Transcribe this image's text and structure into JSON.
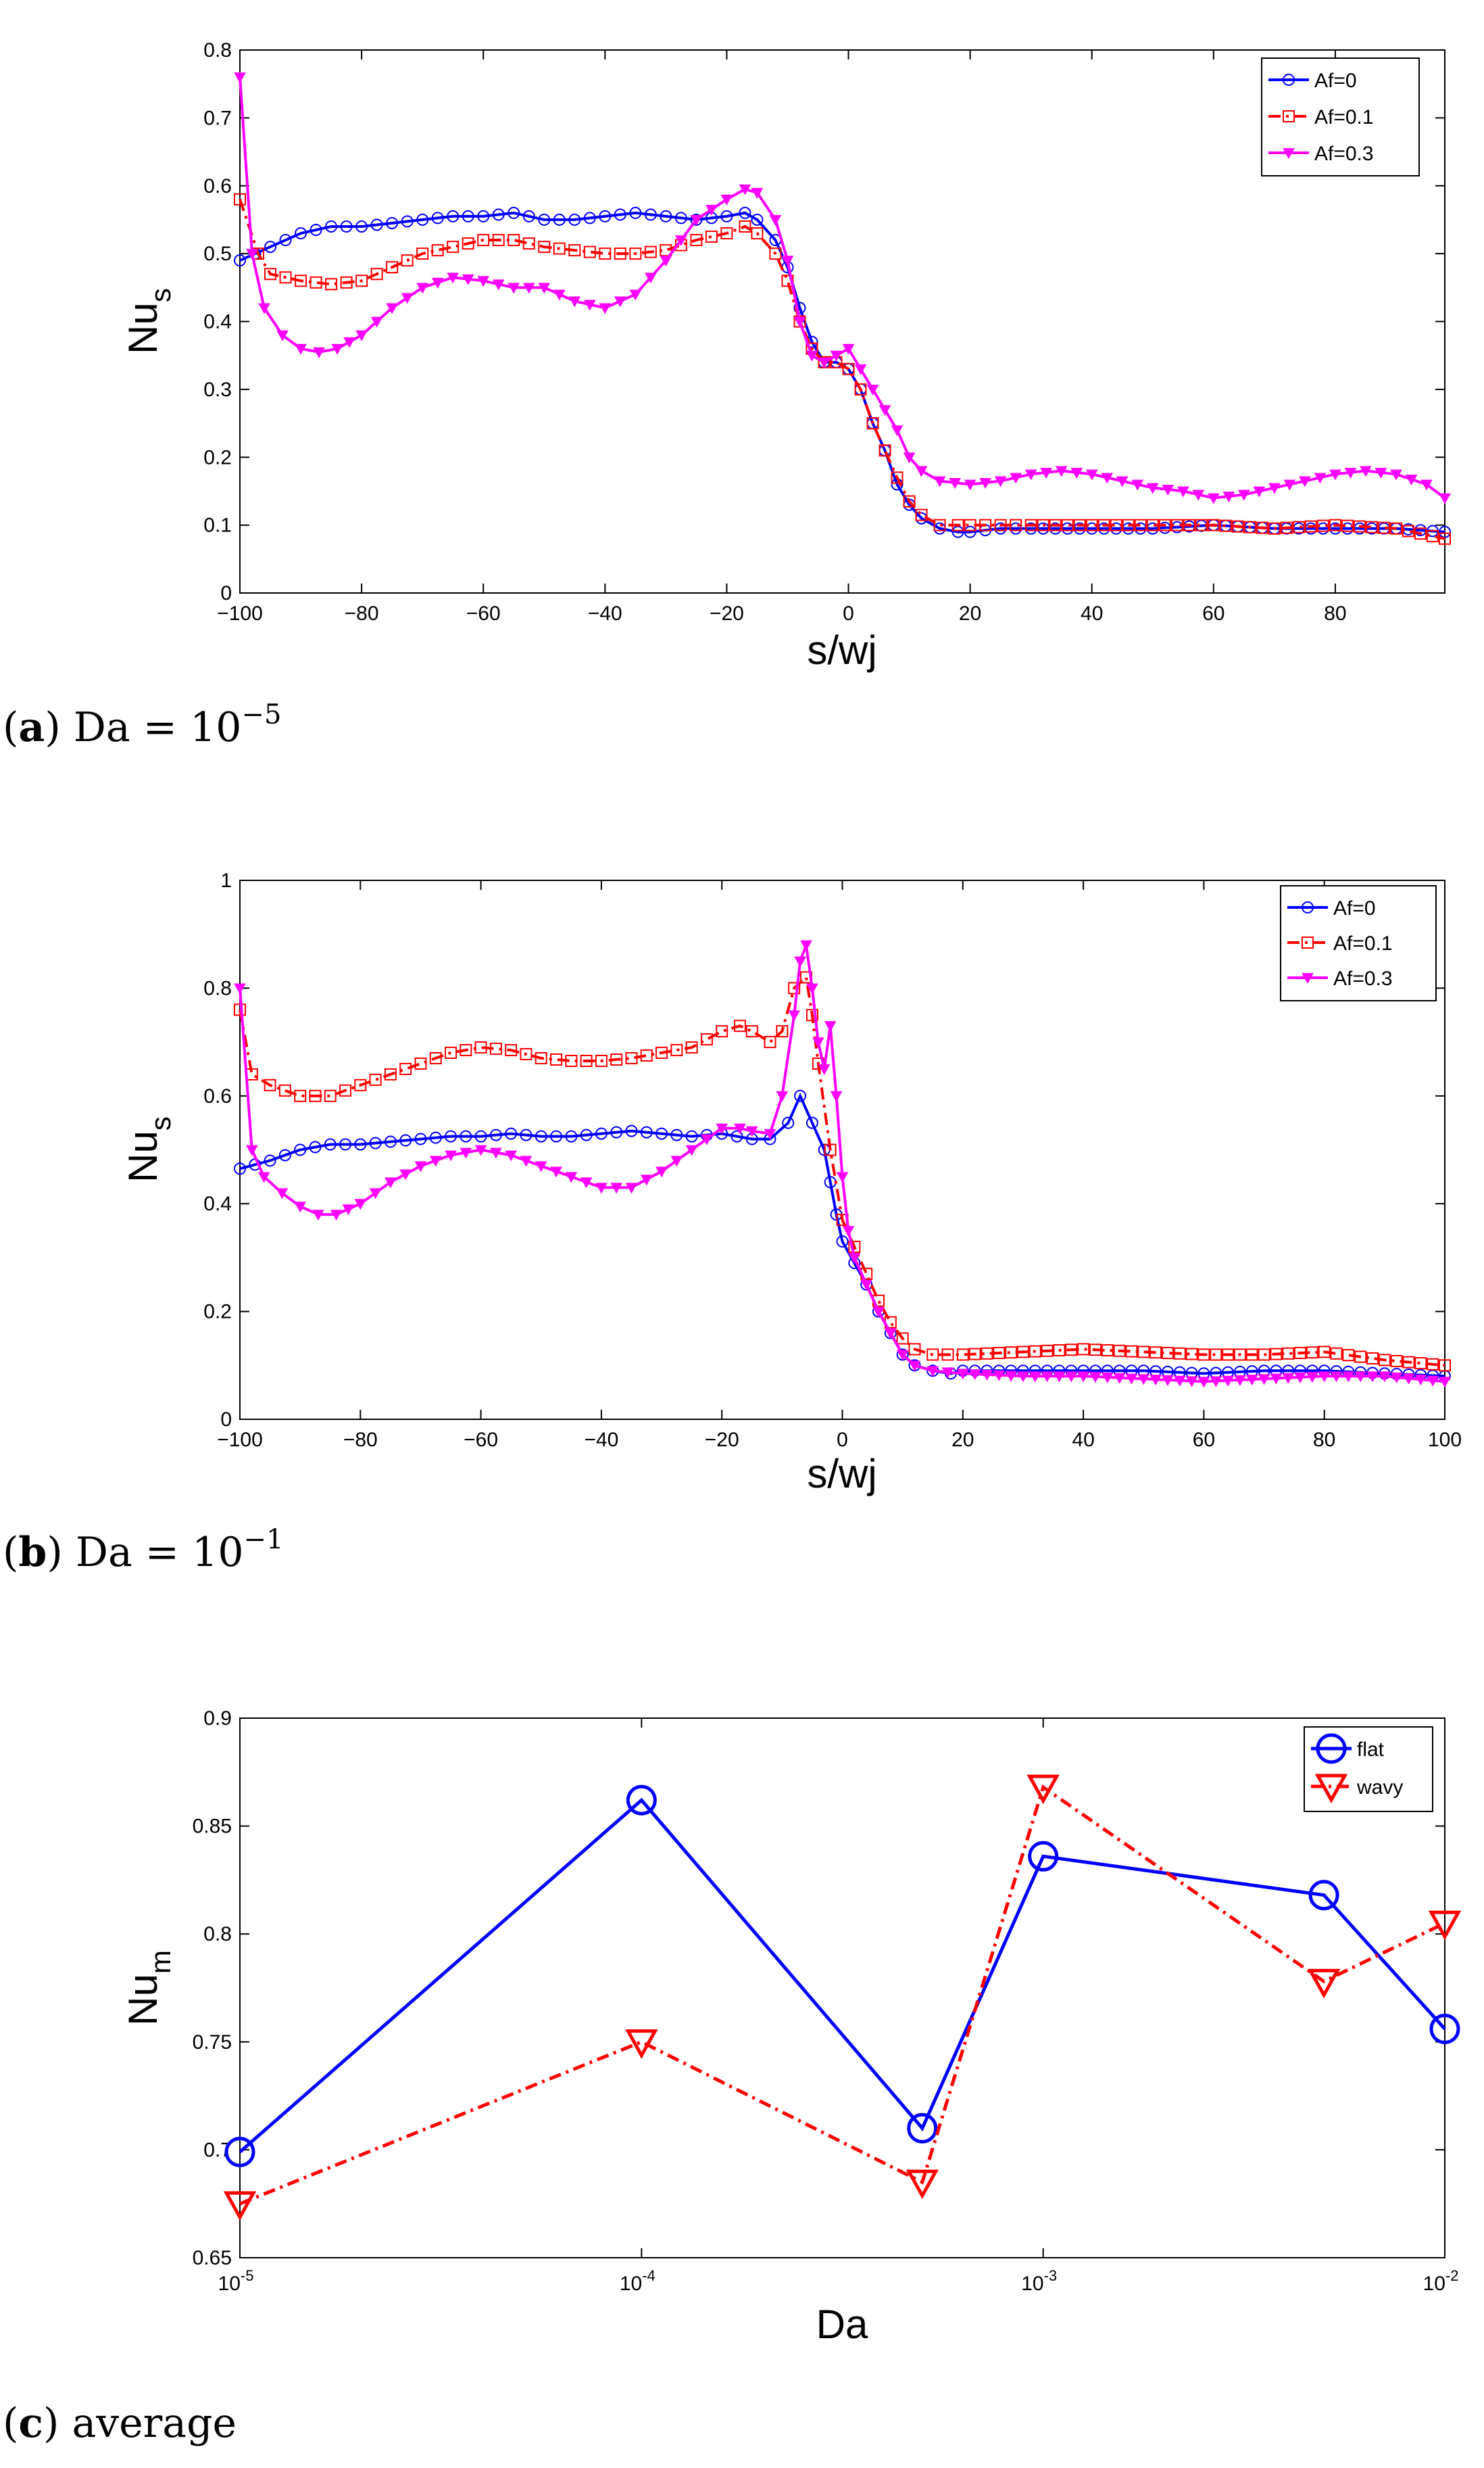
{
  "chart_data": [
    {
      "id": "a",
      "type": "line",
      "caption": {
        "label": "a",
        "prefix": "Da = 10",
        "exp": "−5"
      },
      "xlabel": "s/wj",
      "ylabel": {
        "main": "Nu",
        "sub": "s"
      },
      "xlim": [
        -100,
        98
      ],
      "ylim": [
        0,
        0.8
      ],
      "xticks": [
        -100,
        -80,
        -60,
        -40,
        -20,
        0,
        20,
        40,
        60,
        80
      ],
      "yticks": [
        0,
        0.1,
        0.2,
        0.3,
        0.4,
        0.5,
        0.6,
        0.7,
        0.8
      ],
      "xtick_labels": [
        "−100",
        "−80",
        "−60",
        "−40",
        "−20",
        "0",
        "20",
        "40",
        "60",
        "80"
      ],
      "ytick_labels": [
        "0",
        "0.1",
        "0.2",
        "0.3",
        "0.4",
        "0.5",
        "0.6",
        "0.7",
        "0.8"
      ],
      "legend_position": "top-right",
      "series": [
        {
          "name": "Af=0",
          "color": "#0000ff",
          "marker": "circle",
          "dash": "solid",
          "x": [
            -100,
            -95,
            -90,
            -85,
            -80,
            -75,
            -70,
            -65,
            -60,
            -55,
            -50,
            -45,
            -40,
            -35,
            -30,
            -25,
            -20,
            -17,
            -15,
            -12,
            -10,
            -8,
            -6,
            -4,
            -2,
            0,
            2,
            4,
            6,
            8,
            10,
            12,
            15,
            18,
            20,
            25,
            30,
            40,
            50,
            60,
            70,
            80,
            90,
            98
          ],
          "y": [
            0.49,
            0.51,
            0.53,
            0.54,
            0.54,
            0.545,
            0.55,
            0.555,
            0.555,
            0.56,
            0.55,
            0.55,
            0.555,
            0.56,
            0.555,
            0.55,
            0.555,
            0.56,
            0.55,
            0.52,
            0.48,
            0.42,
            0.37,
            0.34,
            0.34,
            0.33,
            0.3,
            0.25,
            0.21,
            0.16,
            0.13,
            0.11,
            0.095,
            0.09,
            0.09,
            0.095,
            0.095,
            0.095,
            0.095,
            0.1,
            0.095,
            0.095,
            0.095,
            0.09
          ]
        },
        {
          "name": "Af=0.1",
          "color": "#ff0000",
          "marker": "square",
          "dash": "dashdot",
          "x": [
            -100,
            -97,
            -95,
            -90,
            -85,
            -80,
            -75,
            -70,
            -65,
            -60,
            -55,
            -50,
            -45,
            -40,
            -35,
            -30,
            -25,
            -20,
            -17,
            -15,
            -12,
            -10,
            -8,
            -6,
            -4,
            -2,
            0,
            2,
            4,
            6,
            8,
            10,
            12,
            15,
            18,
            20,
            25,
            30,
            40,
            50,
            60,
            70,
            80,
            90,
            98
          ],
          "y": [
            0.58,
            0.5,
            0.47,
            0.46,
            0.455,
            0.46,
            0.48,
            0.5,
            0.51,
            0.52,
            0.52,
            0.51,
            0.505,
            0.5,
            0.5,
            0.505,
            0.52,
            0.53,
            0.54,
            0.53,
            0.5,
            0.46,
            0.4,
            0.36,
            0.34,
            0.34,
            0.33,
            0.3,
            0.25,
            0.21,
            0.17,
            0.135,
            0.115,
            0.1,
            0.1,
            0.1,
            0.1,
            0.1,
            0.1,
            0.1,
            0.1,
            0.095,
            0.1,
            0.095,
            0.08
          ]
        },
        {
          "name": "Af=0.3",
          "color": "#ff00ff",
          "marker": "triangle-down",
          "dash": "solid",
          "x": [
            -100,
            -98,
            -96,
            -93,
            -90,
            -87,
            -84,
            -80,
            -75,
            -70,
            -65,
            -60,
            -55,
            -50,
            -45,
            -40,
            -35,
            -30,
            -25,
            -20,
            -17,
            -15,
            -12,
            -10,
            -8,
            -6,
            -4,
            -2,
            0,
            2,
            4,
            6,
            8,
            10,
            12,
            15,
            20,
            25,
            30,
            35,
            40,
            45,
            50,
            55,
            60,
            65,
            70,
            75,
            80,
            85,
            90,
            95,
            98
          ],
          "y": [
            0.76,
            0.5,
            0.42,
            0.38,
            0.36,
            0.355,
            0.36,
            0.38,
            0.42,
            0.45,
            0.465,
            0.46,
            0.45,
            0.45,
            0.43,
            0.42,
            0.44,
            0.49,
            0.55,
            0.58,
            0.595,
            0.59,
            0.55,
            0.49,
            0.4,
            0.35,
            0.34,
            0.35,
            0.36,
            0.33,
            0.3,
            0.27,
            0.24,
            0.2,
            0.18,
            0.165,
            0.16,
            0.165,
            0.175,
            0.18,
            0.175,
            0.165,
            0.155,
            0.15,
            0.14,
            0.145,
            0.155,
            0.165,
            0.175,
            0.18,
            0.175,
            0.16,
            0.14
          ]
        }
      ]
    },
    {
      "id": "b",
      "type": "line",
      "caption": {
        "label": "b",
        "prefix": "Da = 10",
        "exp": "−1"
      },
      "xlabel": "s/wj",
      "ylabel": {
        "main": "Nu",
        "sub": "s"
      },
      "xlim": [
        -100,
        100
      ],
      "ylim": [
        0,
        1
      ],
      "xticks": [
        -100,
        -80,
        -60,
        -40,
        -20,
        0,
        20,
        40,
        60,
        80,
        100
      ],
      "yticks": [
        0,
        0.2,
        0.4,
        0.6,
        0.8,
        1
      ],
      "xtick_labels": [
        "−100",
        "−80",
        "−60",
        "−40",
        "−20",
        "0",
        "20",
        "40",
        "60",
        "80",
        "100"
      ],
      "ytick_labels": [
        "0",
        "0.2",
        "0.4",
        "0.6",
        "0.8",
        "1"
      ],
      "legend_position": "top-right",
      "series": [
        {
          "name": "Af=0",
          "color": "#0000ff",
          "marker": "circle",
          "dash": "solid",
          "x": [
            -100,
            -95,
            -90,
            -85,
            -80,
            -75,
            -70,
            -65,
            -60,
            -55,
            -50,
            -45,
            -40,
            -35,
            -30,
            -25,
            -20,
            -15,
            -12,
            -9,
            -7,
            -5,
            -3,
            -2,
            -1,
            0,
            2,
            4,
            6,
            8,
            10,
            12,
            15,
            18,
            20,
            30,
            40,
            50,
            60,
            70,
            80,
            90,
            100
          ],
          "y": [
            0.465,
            0.48,
            0.5,
            0.51,
            0.51,
            0.515,
            0.52,
            0.525,
            0.525,
            0.53,
            0.525,
            0.525,
            0.53,
            0.535,
            0.53,
            0.525,
            0.53,
            0.52,
            0.52,
            0.55,
            0.6,
            0.55,
            0.5,
            0.44,
            0.38,
            0.33,
            0.29,
            0.25,
            0.2,
            0.16,
            0.12,
            0.1,
            0.09,
            0.085,
            0.09,
            0.09,
            0.09,
            0.09,
            0.085,
            0.09,
            0.09,
            0.085,
            0.08
          ]
        },
        {
          "name": "Af=0.1",
          "color": "#ff0000",
          "marker": "square",
          "dash": "dashdot",
          "x": [
            -100,
            -98,
            -95,
            -90,
            -85,
            -80,
            -75,
            -70,
            -65,
            -60,
            -55,
            -50,
            -45,
            -40,
            -35,
            -30,
            -25,
            -20,
            -17,
            -15,
            -12,
            -10,
            -8,
            -6,
            -5,
            -4,
            -2,
            0,
            2,
            4,
            6,
            8,
            10,
            12,
            15,
            20,
            30,
            40,
            50,
            60,
            70,
            80,
            90,
            100
          ],
          "y": [
            0.76,
            0.64,
            0.62,
            0.6,
            0.6,
            0.62,
            0.64,
            0.66,
            0.68,
            0.69,
            0.685,
            0.67,
            0.665,
            0.665,
            0.67,
            0.68,
            0.69,
            0.72,
            0.73,
            0.72,
            0.7,
            0.72,
            0.8,
            0.82,
            0.75,
            0.66,
            0.5,
            0.37,
            0.32,
            0.27,
            0.22,
            0.18,
            0.15,
            0.13,
            0.12,
            0.12,
            0.125,
            0.13,
            0.125,
            0.12,
            0.12,
            0.125,
            0.11,
            0.1
          ]
        },
        {
          "name": "Af=0.3",
          "color": "#ff00ff",
          "marker": "triangle-down",
          "dash": "solid",
          "x": [
            -100,
            -98,
            -96,
            -93,
            -90,
            -87,
            -84,
            -80,
            -75,
            -70,
            -65,
            -60,
            -55,
            -50,
            -45,
            -40,
            -35,
            -30,
            -25,
            -20,
            -17,
            -15,
            -12,
            -10,
            -8,
            -7,
            -6,
            -5,
            -4,
            -3,
            -2,
            -1,
            0,
            1,
            2,
            4,
            6,
            8,
            10,
            12,
            15,
            20,
            30,
            40,
            50,
            60,
            70,
            80,
            90,
            100
          ],
          "y": [
            0.8,
            0.5,
            0.45,
            0.42,
            0.395,
            0.38,
            0.38,
            0.4,
            0.44,
            0.47,
            0.49,
            0.5,
            0.49,
            0.47,
            0.45,
            0.43,
            0.43,
            0.46,
            0.5,
            0.54,
            0.54,
            0.535,
            0.53,
            0.6,
            0.75,
            0.85,
            0.88,
            0.8,
            0.7,
            0.65,
            0.73,
            0.6,
            0.45,
            0.35,
            0.3,
            0.25,
            0.2,
            0.16,
            0.12,
            0.1,
            0.09,
            0.085,
            0.08,
            0.08,
            0.075,
            0.07,
            0.075,
            0.08,
            0.08,
            0.07
          ]
        }
      ]
    },
    {
      "id": "c",
      "type": "line",
      "caption": {
        "label": "c",
        "text": "average"
      },
      "xlabel": "Da",
      "ylabel": {
        "main": "Nu",
        "sub": "m"
      },
      "xscale": "log",
      "xlim": [
        1e-05,
        0.01
      ],
      "ylim": [
        0.65,
        0.9
      ],
      "xticks": [
        1e-05,
        0.0001,
        0.001,
        0.01
      ],
      "xtick_labels": [
        {
          "base": "10",
          "exp": "-5"
        },
        {
          "base": "10",
          "exp": "-4"
        },
        {
          "base": "10",
          "exp": "-3"
        },
        {
          "base": "10",
          "exp": "-2"
        }
      ],
      "yticks": [
        0.65,
        0.7,
        0.75,
        0.8,
        0.85,
        0.9
      ],
      "ytick_labels": [
        "0.65",
        "0.7",
        "0.75",
        "0.8",
        "0.85",
        "0.9"
      ],
      "legend_position": "top-right",
      "series": [
        {
          "name": "flat",
          "color": "#0000ff",
          "marker": "circle-large",
          "dash": "solid",
          "x": [
            1e-05,
            0.0001,
            0.0005,
            0.001,
            0.005,
            0.01
          ],
          "y": [
            0.699,
            0.862,
            0.71,
            0.836,
            0.818,
            0.756
          ]
        },
        {
          "name": "wavy",
          "color": "#ff0000",
          "marker": "triangle-down-large",
          "dash": "dashdot",
          "x": [
            1e-05,
            0.0001,
            0.0005,
            0.001,
            0.005,
            0.01
          ],
          "y": [
            0.675,
            0.75,
            0.685,
            0.868,
            0.778,
            0.805
          ]
        }
      ]
    }
  ]
}
